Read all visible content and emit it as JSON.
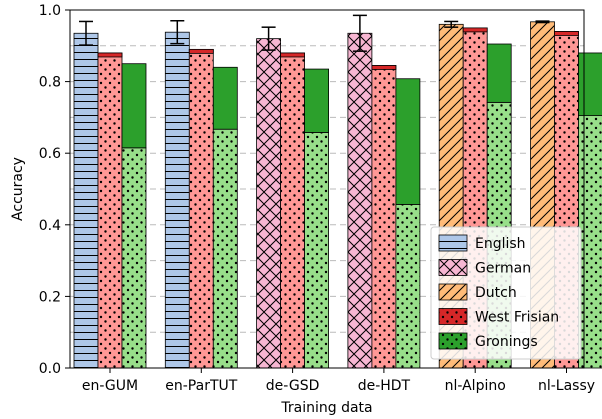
{
  "chart_data": {
    "type": "bar",
    "title": "",
    "xlabel": "Training data",
    "ylabel": "Accuracy",
    "ylim": [
      0,
      1.0
    ],
    "yticks": [
      0.0,
      0.2,
      0.4,
      0.6,
      0.8,
      1.0
    ],
    "ytick_labels": [
      "0.0",
      "0.2",
      "0.4",
      "0.6",
      "0.8",
      "1.0"
    ],
    "grid": "horizontal dashed",
    "legend_position": "bottom-right",
    "categories": [
      "en-GUM",
      "en-ParTUT",
      "de-GSD",
      "de-HDT",
      "nl-Alpino",
      "nl-Lassy"
    ],
    "bars": [
      {
        "category": "en-GUM",
        "type": "standard",
        "language": "English",
        "value": 0.935,
        "err": 0.033
      },
      {
        "category": "en-GUM",
        "type": "standard",
        "language": "West Frisian",
        "value": 0.88
      },
      {
        "category": "en-GUM",
        "type": "groningen",
        "value": 0.85,
        "lower": 0.615
      },
      {
        "category": "en-ParTUT",
        "type": "standard",
        "language": "English",
        "value": 0.938,
        "err": 0.032
      },
      {
        "category": "en-ParTUT",
        "type": "standard",
        "language": "West Frisian",
        "value": 0.89
      },
      {
        "category": "en-ParTUT",
        "type": "groningen",
        "value": 0.84,
        "lower": 0.667
      },
      {
        "category": "de-GSD",
        "type": "standard",
        "language": "German",
        "value": 0.92,
        "err": 0.032
      },
      {
        "category": "de-GSD",
        "type": "standard",
        "language": "West Frisian",
        "value": 0.88
      },
      {
        "category": "de-GSD",
        "type": "groningen",
        "value": 0.835,
        "lower": 0.658
      },
      {
        "category": "de-HDT",
        "type": "standard",
        "language": "German",
        "value": 0.935,
        "err": 0.05
      },
      {
        "category": "de-HDT",
        "type": "standard",
        "language": "West Frisian",
        "value": 0.845
      },
      {
        "category": "de-HDT",
        "type": "groningen",
        "value": 0.808,
        "lower": 0.457
      },
      {
        "category": "nl-Alpino",
        "type": "standard",
        "language": "Dutch",
        "value": 0.96,
        "err": 0.008
      },
      {
        "category": "nl-Alpino",
        "type": "standard",
        "language": "West Frisian",
        "value": 0.95
      },
      {
        "category": "nl-Alpino",
        "type": "groningen",
        "value": 0.905,
        "lower": 0.742
      },
      {
        "category": "nl-Lassy",
        "type": "standard",
        "language": "Dutch",
        "value": 0.967,
        "err": 0.002
      },
      {
        "category": "nl-Lassy",
        "type": "standard",
        "language": "West Frisian",
        "value": 0.94
      },
      {
        "category": "nl-Lassy",
        "type": "groningen",
        "value": 0.88,
        "lower": 0.705
      }
    ],
    "legend": [
      {
        "label": "English",
        "color": "#aec7e8",
        "hatch": "horizontal"
      },
      {
        "label": "German",
        "color": "#f7b6d2",
        "hatch": "cross"
      },
      {
        "label": "Dutch",
        "color": "#ffbb78",
        "hatch": "diagonal"
      },
      {
        "label": "West Frisian",
        "color": "#d62728",
        "hatch": "dots"
      },
      {
        "label": "Gronings",
        "color": "#2ca02c",
        "hatch": "dots"
      }
    ],
    "colors": {
      "English": "#aec7e8",
      "German": "#f7b6d2",
      "Dutch": "#ffbb78",
      "West Frisian": "#d62728",
      "West Frisian light": "#ff9896",
      "Gronings": "#2ca02c",
      "Gronings light": "#98df8a"
    }
  }
}
